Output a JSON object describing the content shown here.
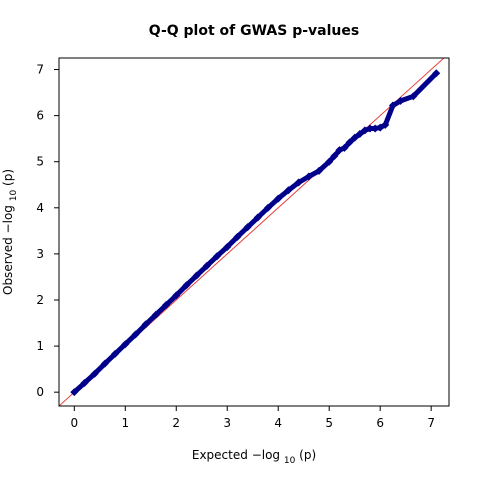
{
  "chart_data": {
    "type": "scatter",
    "title": "Q-Q plot of GWAS p-values",
    "xlabel": {
      "prefix": "Expected",
      "text": "−log",
      "sub": "10",
      "suffix": "(p)"
    },
    "ylabel": {
      "prefix": "Observed",
      "text": "−log",
      "sub": "10",
      "suffix": "(p)"
    },
    "xlim": [
      -0.3,
      7.35
    ],
    "ylim": [
      -0.3,
      7.25
    ],
    "xticks": [
      "0",
      "1",
      "2",
      "3",
      "4",
      "5",
      "6",
      "7"
    ],
    "yticks": [
      "0",
      "1",
      "2",
      "3",
      "4",
      "5",
      "6",
      "7"
    ],
    "reference_line": {
      "x": [
        -0.3,
        7.35
      ],
      "y": [
        -0.3,
        7.35
      ]
    },
    "series": [
      {
        "x": [
          0,
          0.2,
          0.4,
          0.6,
          0.8,
          1.0,
          1.2,
          1.4,
          1.6,
          1.8,
          2.0,
          2.2,
          2.4,
          2.6,
          2.8,
          3.0,
          3.2,
          3.4,
          3.6,
          3.8,
          4.0,
          4.2,
          4.4,
          4.6,
          4.8,
          5.0,
          5.1,
          5.2,
          5.3,
          5.4,
          5.5,
          5.6,
          5.7,
          5.8,
          5.9,
          6.0,
          6.1,
          6.25,
          6.4,
          6.65,
          7.1
        ],
        "y": [
          0.0,
          0.2,
          0.4,
          0.62,
          0.83,
          1.04,
          1.25,
          1.47,
          1.68,
          1.89,
          2.1,
          2.32,
          2.53,
          2.74,
          2.95,
          3.15,
          3.37,
          3.58,
          3.79,
          4.0,
          4.2,
          4.38,
          4.55,
          4.68,
          4.8,
          5.0,
          5.12,
          5.25,
          5.3,
          5.42,
          5.52,
          5.6,
          5.68,
          5.72,
          5.72,
          5.74,
          5.8,
          6.22,
          6.32,
          6.42,
          6.92
        ],
        "color": "#00008b"
      }
    ],
    "line_color": "#e8413c"
  }
}
